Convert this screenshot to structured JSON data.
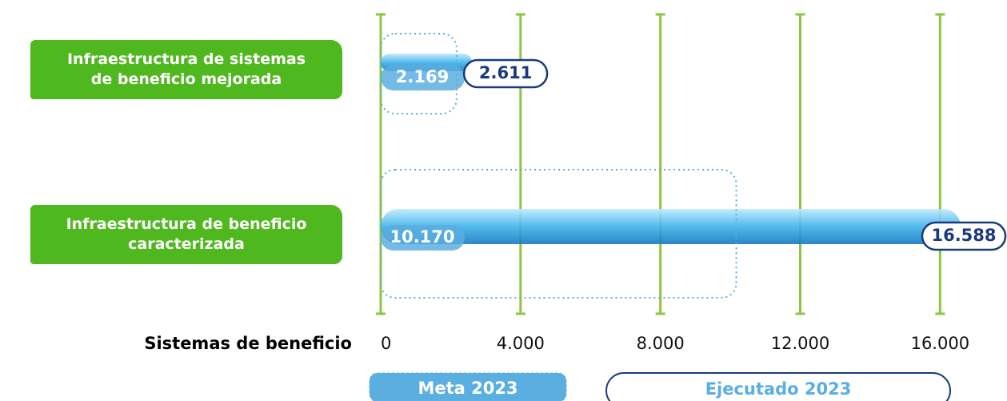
{
  "chart_data": {
    "type": "bar",
    "x_label": "Sistemas de  beneficio",
    "categories": [
      "Infraestructura de sistemas de beneficio mejorada",
      "Infraestructura de beneficio caracterizada"
    ],
    "series": [
      {
        "name": "Meta 2023",
        "color": "#5aaee0",
        "values": [
          2169,
          10170
        ],
        "value_labels": [
          "2.169",
          "10.170"
        ]
      },
      {
        "name": "Ejecutado 2023",
        "color": "#1a3a7a",
        "values": [
          2611,
          16588
        ],
        "value_labels": [
          "2.611",
          "16.588"
        ]
      }
    ],
    "xlim": [
      0,
      17800
    ],
    "xticks": [
      0,
      {
        "value": 4000,
        "label": "4.000"
      },
      {
        "value": 8000,
        "label": "8.000"
      },
      {
        "value": 12000,
        "label": "12.000"
      },
      {
        "value": 16000,
        "label": "16.000"
      }
    ],
    "grid": true,
    "grid_color": "#8dc63f",
    "label_color": "#4fb81e"
  }
}
